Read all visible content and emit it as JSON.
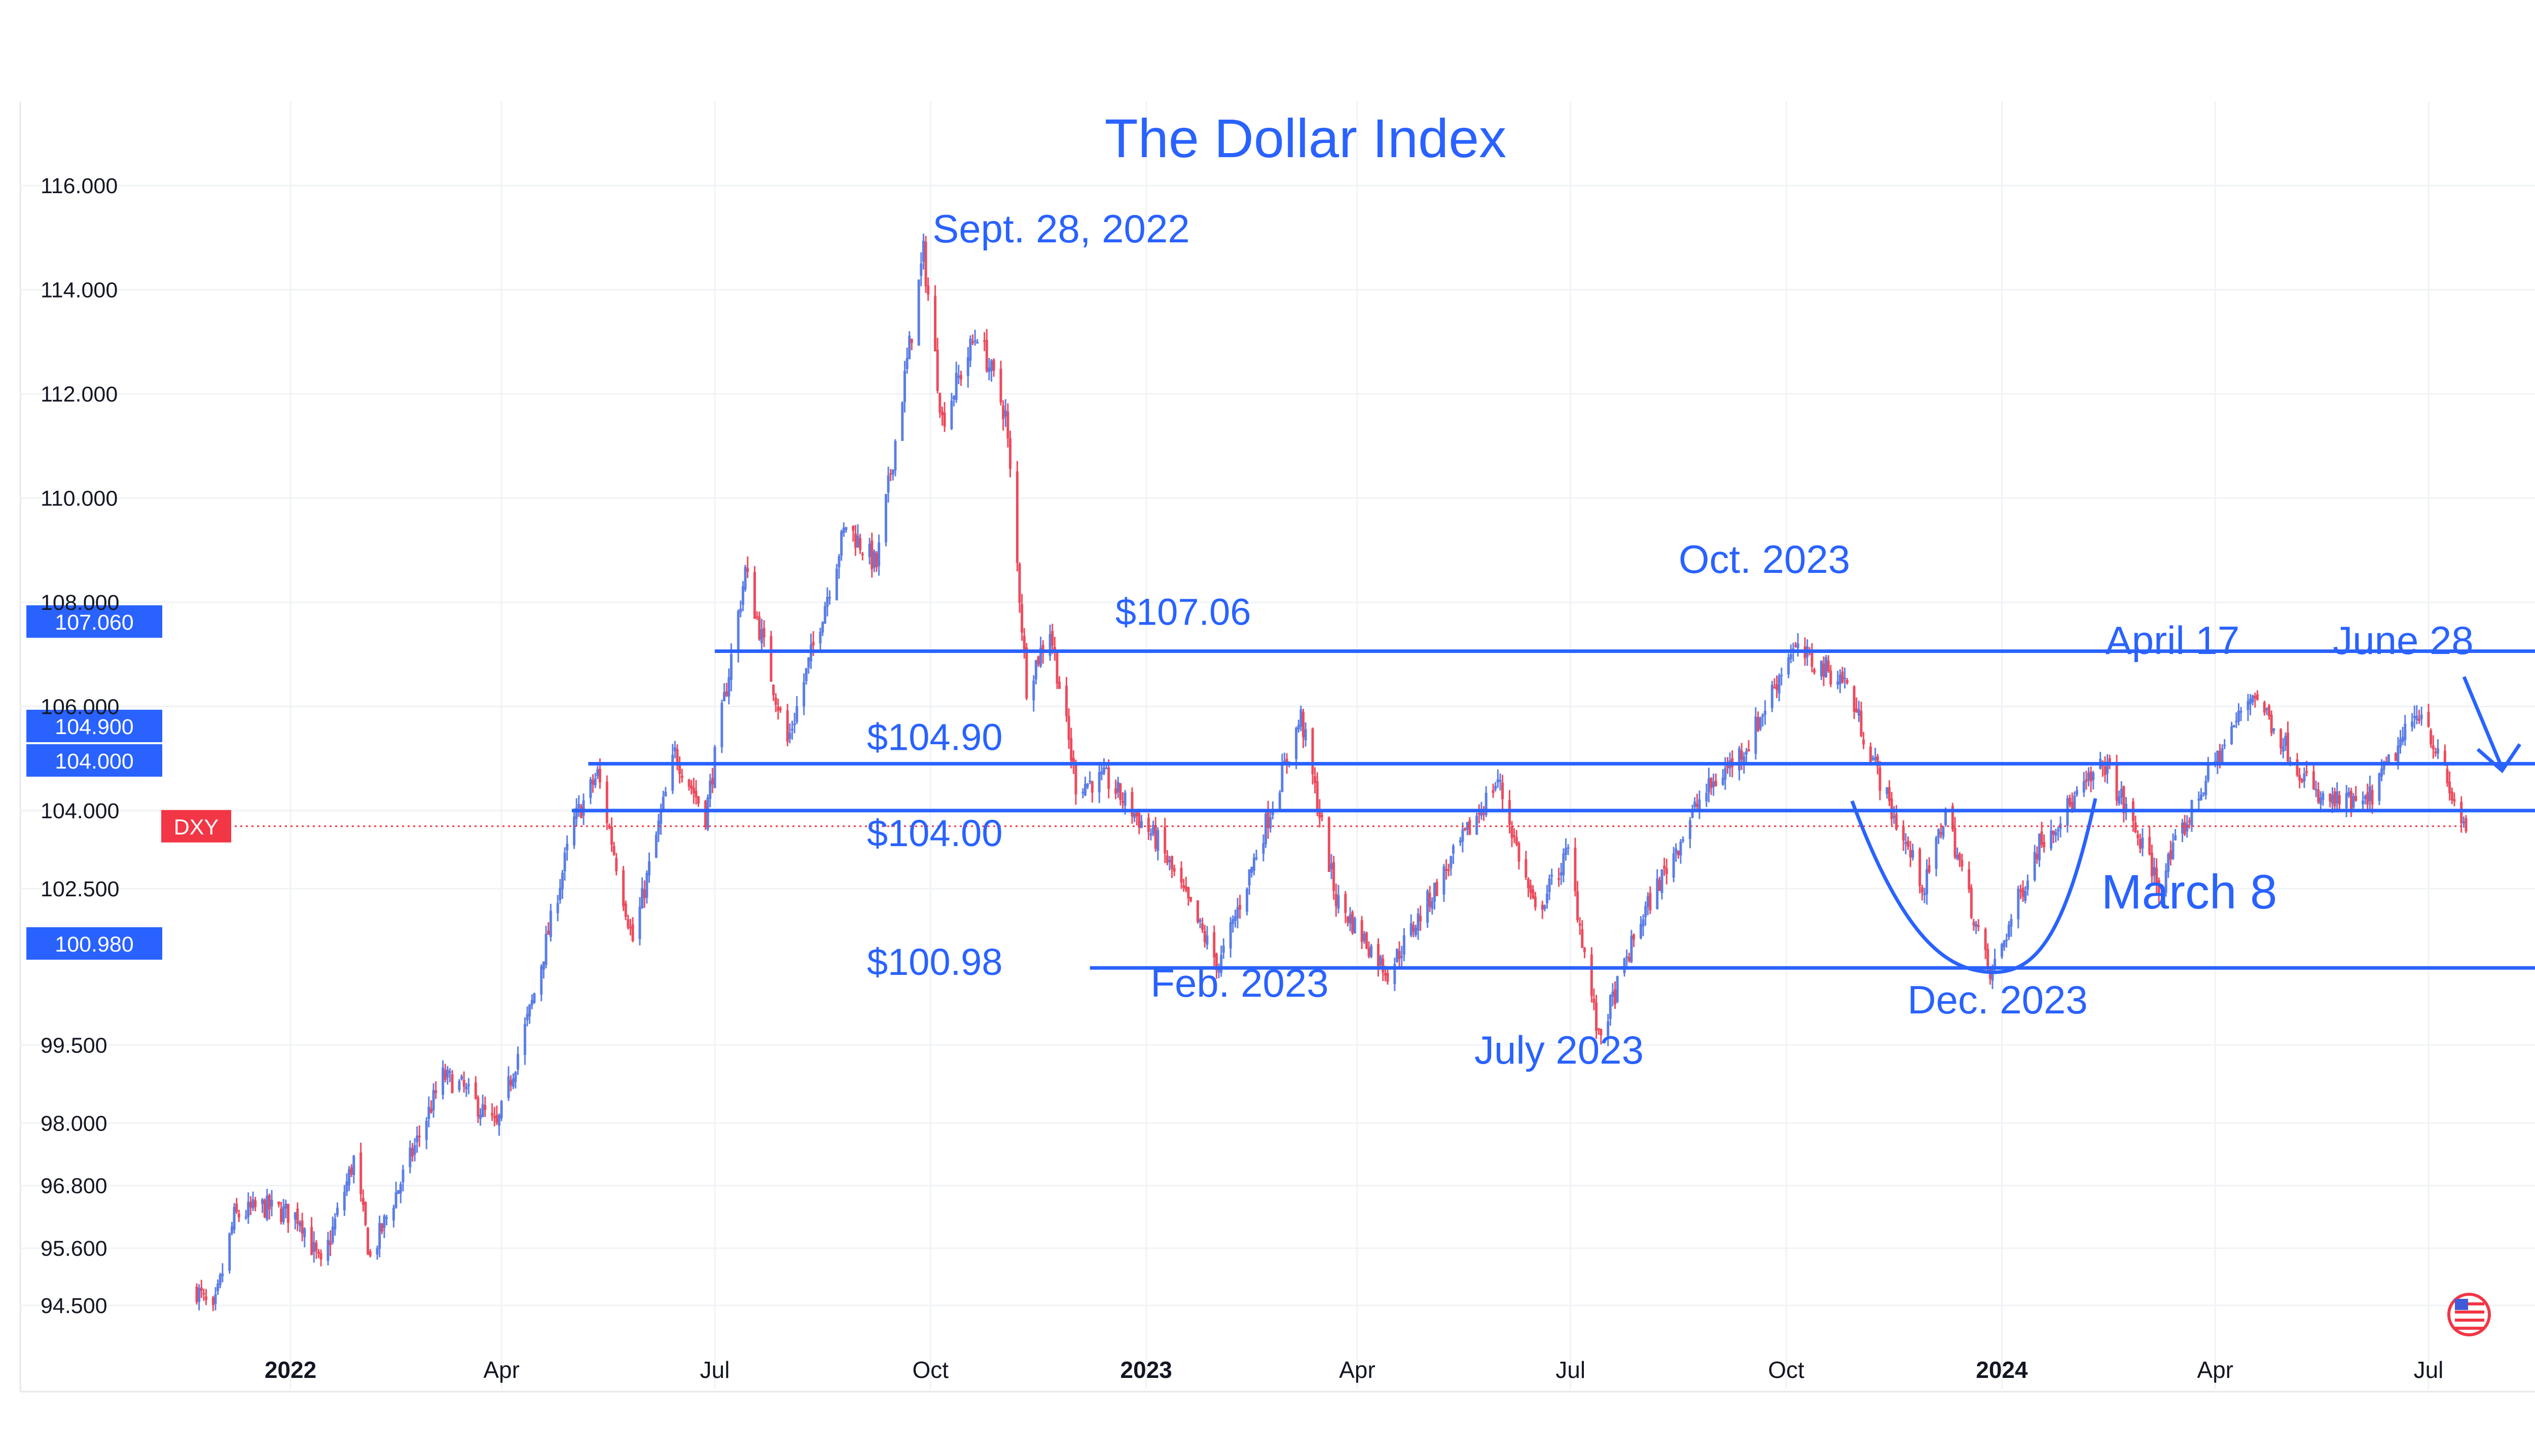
{
  "chart_data": {
    "type": "candlestick",
    "title": "The Dollar Index",
    "symbol": "DXY",
    "y_range": [
      94.0,
      116.6
    ],
    "x_range": [
      "2021-11-15",
      "2024-08-20"
    ],
    "y_ticks": [
      {
        "value": 116.0,
        "label": "116.000"
      },
      {
        "value": 114.0,
        "label": "114.000"
      },
      {
        "value": 112.0,
        "label": "112.000"
      },
      {
        "value": 110.0,
        "label": "110.000"
      },
      {
        "value": 108.0,
        "label": "108.000"
      },
      {
        "value": 106.0,
        "label": "106.000"
      },
      {
        "value": 104.0,
        "label": "104.000"
      },
      {
        "value": 102.5,
        "label": "102.500"
      },
      {
        "value": 99.5,
        "label": "99.500"
      },
      {
        "value": 98.0,
        "label": "98.000"
      },
      {
        "value": 96.8,
        "label": "96.800"
      },
      {
        "value": 95.6,
        "label": "95.600"
      },
      {
        "value": 94.5,
        "label": "94.500"
      }
    ],
    "x_ticks": [
      {
        "date": "2022-01-01",
        "label": "2022",
        "bold": true
      },
      {
        "date": "2022-04-01",
        "label": "Apr",
        "bold": false
      },
      {
        "date": "2022-07-01",
        "label": "Jul",
        "bold": false
      },
      {
        "date": "2022-10-01",
        "label": "Oct",
        "bold": false
      },
      {
        "date": "2023-01-01",
        "label": "2023",
        "bold": true
      },
      {
        "date": "2023-04-01",
        "label": "Apr",
        "bold": false
      },
      {
        "date": "2023-07-01",
        "label": "Jul",
        "bold": false
      },
      {
        "date": "2023-10-01",
        "label": "Oct",
        "bold": false
      },
      {
        "date": "2024-01-01",
        "label": "2024",
        "bold": true
      },
      {
        "date": "2024-04-01",
        "label": "Apr",
        "bold": false
      },
      {
        "date": "2024-07-01",
        "label": "Jul",
        "bold": false
      }
    ],
    "price_path": [
      {
        "date": "2021-11-22",
        "value": 94.8
      },
      {
        "date": "2021-11-29",
        "value": 94.3
      },
      {
        "date": "2021-12-08",
        "value": 96.2
      },
      {
        "date": "2021-12-20",
        "value": 96.4
      },
      {
        "date": "2022-01-05",
        "value": 96.2
      },
      {
        "date": "2022-01-14",
        "value": 95.2
      },
      {
        "date": "2022-01-28",
        "value": 97.3
      },
      {
        "date": "2022-02-04",
        "value": 95.4
      },
      {
        "date": "2022-03-07",
        "value": 98.9
      },
      {
        "date": "2022-03-15",
        "value": 98.7
      },
      {
        "date": "2022-03-30",
        "value": 97.9
      },
      {
        "date": "2022-04-14",
        "value": 100.3
      },
      {
        "date": "2022-05-02",
        "value": 103.8
      },
      {
        "date": "2022-05-12",
        "value": 104.7
      },
      {
        "date": "2022-05-27",
        "value": 101.5
      },
      {
        "date": "2022-06-14",
        "value": 105.1
      },
      {
        "date": "2022-06-27",
        "value": 103.9
      },
      {
        "date": "2022-07-14",
        "value": 108.6
      },
      {
        "date": "2022-08-01",
        "value": 105.3
      },
      {
        "date": "2022-08-26",
        "value": 109.5
      },
      {
        "date": "2022-09-08",
        "value": 108.7
      },
      {
        "date": "2022-09-28",
        "value": 114.7
      },
      {
        "date": "2022-10-06",
        "value": 111.5
      },
      {
        "date": "2022-10-21",
        "value": 113.2
      },
      {
        "date": "2022-11-02",
        "value": 111.6
      },
      {
        "date": "2022-11-11",
        "value": 106.4
      },
      {
        "date": "2022-11-21",
        "value": 107.5
      },
      {
        "date": "2022-12-02",
        "value": 104.5
      },
      {
        "date": "2022-12-15",
        "value": 104.6
      },
      {
        "date": "2023-01-06",
        "value": 103.4
      },
      {
        "date": "2023-02-01",
        "value": 101.0
      },
      {
        "date": "2023-03-08",
        "value": 105.8
      },
      {
        "date": "2023-03-23",
        "value": 102.3
      },
      {
        "date": "2023-04-14",
        "value": 100.9
      },
      {
        "date": "2023-05-31",
        "value": 104.6
      },
      {
        "date": "2023-06-16",
        "value": 102.0
      },
      {
        "date": "2023-06-30",
        "value": 103.2
      },
      {
        "date": "2023-07-13",
        "value": 99.6
      },
      {
        "date": "2023-07-31",
        "value": 101.9
      },
      {
        "date": "2023-08-25",
        "value": 104.2
      },
      {
        "date": "2023-09-15",
        "value": 105.3
      },
      {
        "date": "2023-10-03",
        "value": 107.1
      },
      {
        "date": "2023-10-26",
        "value": 106.5
      },
      {
        "date": "2023-11-14",
        "value": 104.1
      },
      {
        "date": "2023-11-29",
        "value": 102.5
      },
      {
        "date": "2023-12-08",
        "value": 104.0
      },
      {
        "date": "2023-12-27",
        "value": 100.8
      },
      {
        "date": "2024-01-17",
        "value": 103.4
      },
      {
        "date": "2024-02-14",
        "value": 104.9
      },
      {
        "date": "2024-03-08",
        "value": 102.6
      },
      {
        "date": "2024-03-28",
        "value": 104.6
      },
      {
        "date": "2024-04-17",
        "value": 106.3
      },
      {
        "date": "2024-05-15",
        "value": 104.2
      },
      {
        "date": "2024-06-04",
        "value": 104.1
      },
      {
        "date": "2024-06-28",
        "value": 106.0
      },
      {
        "date": "2024-07-12",
        "value": 104.1
      },
      {
        "date": "2024-07-17",
        "value": 103.7
      }
    ],
    "current_price": 103.7,
    "levels": [
      {
        "value": 107.06,
        "label": "$107.06",
        "badge": "107.060",
        "start_date": "2022-07-01"
      },
      {
        "value": 104.9,
        "label": "$104.90",
        "badge": "104.900",
        "start_date": "2022-05-08"
      },
      {
        "value": 104.0,
        "label": "$104.00",
        "badge": "104.000",
        "start_date": "2022-05-01"
      },
      {
        "value": 100.98,
        "label": "$100.98",
        "badge": "100.980",
        "start_date": "2022-12-08"
      }
    ],
    "annotations": [
      {
        "text": "Sept. 28, 2022",
        "date": "2022-09-28",
        "value": 114.8
      },
      {
        "text": "Oct. 2023",
        "date": "2023-10-02",
        "value": 107.2
      },
      {
        "text": "April 17",
        "date": "2024-04-17",
        "value": 106.5
      },
      {
        "text": "June 28",
        "date": "2024-06-28",
        "value": 106.2
      },
      {
        "text": "March 8",
        "date": "2024-03-08",
        "value": 102.5
      },
      {
        "text": "Feb. 2023",
        "date": "2023-02-01",
        "value": 100.9
      },
      {
        "text": "July 2023",
        "date": "2023-07-13",
        "value": 99.6
      },
      {
        "text": "Dec. 2023",
        "date": "2023-12-27",
        "value": 100.7
      }
    ],
    "colors": {
      "up": "#5b7ee6",
      "down": "#ec4b5d",
      "accent": "#2962ff",
      "symbol_badge": "#f23645",
      "background": "#ffffff",
      "grid": "#f0f3f6",
      "text": "#131722"
    }
  }
}
